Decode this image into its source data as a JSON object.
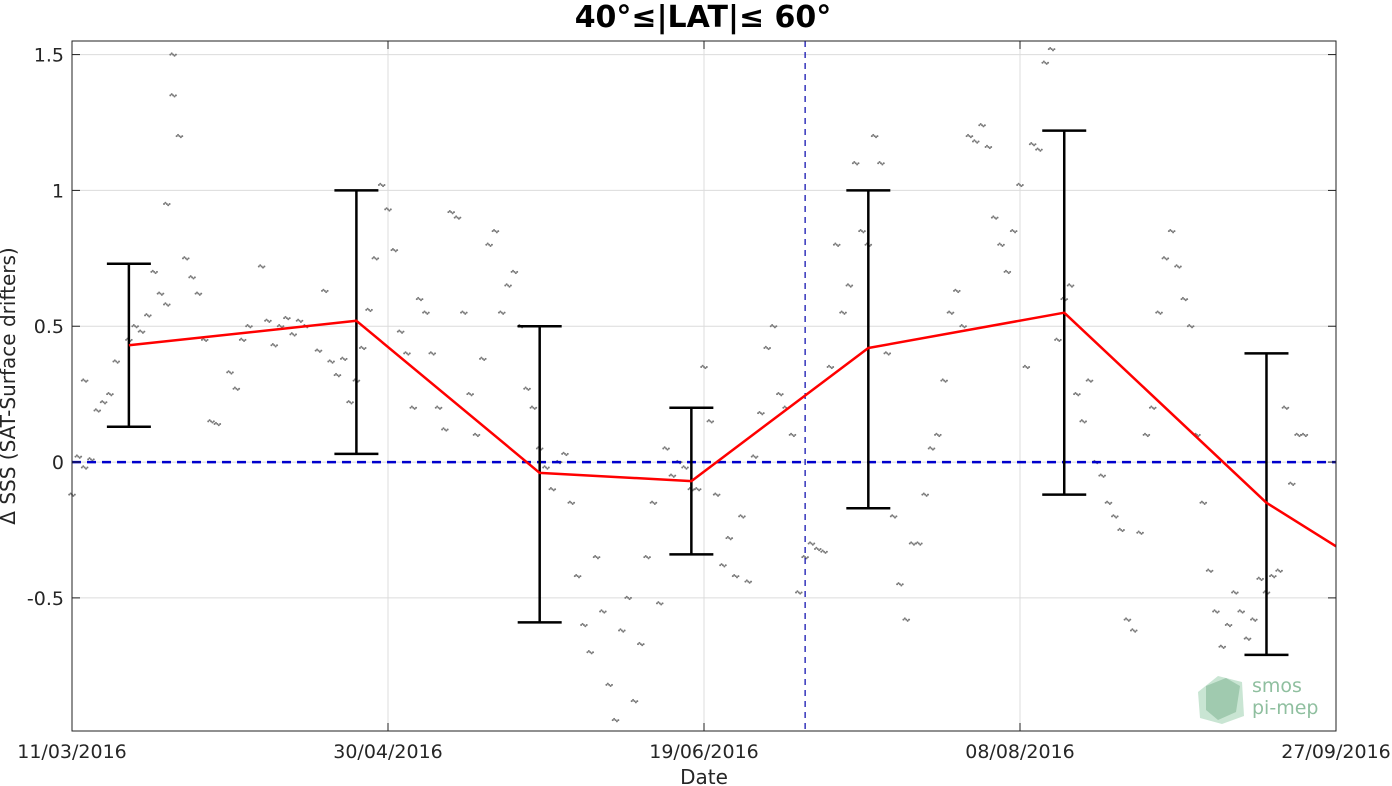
{
  "chart_data": {
    "type": "line",
    "title": "40°≤|LAT|≤ 60°",
    "xlabel": "Date",
    "ylabel": "Δ SSS (SAT-Surface drifters)",
    "x_ticks": [
      "11/03/2016",
      "30/04/2016",
      "19/06/2016",
      "08/08/2016",
      "27/09/2016"
    ],
    "y_ticks": [
      "1.5",
      "1",
      "0.5",
      "0",
      "-0.5"
    ],
    "xlim": [
      "2016-03-11",
      "2016-09-27"
    ],
    "ylim": [
      -0.99,
      1.55
    ],
    "grid": true,
    "zero_line": {
      "y": 0,
      "color": "#0000cc",
      "style": "dashed"
    },
    "vertical_marker": {
      "x": "2016-07-05",
      "color": "#0000aa",
      "style": "dashed"
    },
    "series": [
      {
        "type": "line",
        "color": "#ff0000",
        "x": [
          "2016-03-20",
          "2016-04-25",
          "2016-05-24",
          "2016-06-17",
          "2016-07-15",
          "2016-08-15",
          "2016-09-16",
          "2016-09-27"
        ],
        "y": [
          0.43,
          0.52,
          -0.04,
          -0.07,
          0.42,
          0.55,
          -0.15,
          -0.31
        ]
      },
      {
        "type": "errorbar",
        "color": "#000000",
        "x": [
          "2016-03-20",
          "2016-04-25",
          "2016-05-24",
          "2016-06-17",
          "2016-07-15",
          "2016-08-15",
          "2016-09-16"
        ],
        "lower": [
          0.13,
          0.03,
          -0.59,
          -0.34,
          -0.17,
          -0.12,
          -0.71
        ],
        "upper": [
          0.73,
          1.0,
          0.5,
          0.2,
          1.0,
          1.22,
          0.4
        ]
      },
      {
        "type": "scatter",
        "color": "#7a7a7a",
        "points": [
          [
            "2016-03-11",
            -0.12
          ],
          [
            "2016-03-12",
            0.02
          ],
          [
            "2016-03-13",
            -0.02
          ],
          [
            "2016-03-13",
            0.3
          ],
          [
            "2016-03-14",
            0.01
          ],
          [
            "2016-03-15",
            0.19
          ],
          [
            "2016-03-16",
            0.22
          ],
          [
            "2016-03-17",
            0.25
          ],
          [
            "2016-03-18",
            0.37
          ],
          [
            "2016-03-20",
            0.45
          ],
          [
            "2016-03-21",
            0.5
          ],
          [
            "2016-03-22",
            0.48
          ],
          [
            "2016-03-23",
            0.54
          ],
          [
            "2016-03-24",
            0.7
          ],
          [
            "2016-03-25",
            0.62
          ],
          [
            "2016-03-26",
            0.58
          ],
          [
            "2016-03-26",
            0.95
          ],
          [
            "2016-03-27",
            1.35
          ],
          [
            "2016-03-27",
            1.5
          ],
          [
            "2016-03-28",
            1.2
          ],
          [
            "2016-03-29",
            0.75
          ],
          [
            "2016-03-30",
            0.68
          ],
          [
            "2016-03-31",
            0.62
          ],
          [
            "2016-04-01",
            0.45
          ],
          [
            "2016-04-02",
            0.15
          ],
          [
            "2016-04-03",
            0.14
          ],
          [
            "2016-04-05",
            0.33
          ],
          [
            "2016-04-06",
            0.27
          ],
          [
            "2016-04-07",
            0.45
          ],
          [
            "2016-04-08",
            0.5
          ],
          [
            "2016-04-10",
            0.72
          ],
          [
            "2016-04-11",
            0.52
          ],
          [
            "2016-04-12",
            0.43
          ],
          [
            "2016-04-13",
            0.5
          ],
          [
            "2016-04-14",
            0.53
          ],
          [
            "2016-04-15",
            0.47
          ],
          [
            "2016-04-16",
            0.52
          ],
          [
            "2016-04-17",
            0.5
          ],
          [
            "2016-04-19",
            0.41
          ],
          [
            "2016-04-20",
            0.63
          ],
          [
            "2016-04-21",
            0.37
          ],
          [
            "2016-04-22",
            0.32
          ],
          [
            "2016-04-23",
            0.38
          ],
          [
            "2016-04-24",
            0.22
          ],
          [
            "2016-04-25",
            0.3
          ],
          [
            "2016-04-26",
            0.42
          ],
          [
            "2016-04-27",
            0.56
          ],
          [
            "2016-04-28",
            0.75
          ],
          [
            "2016-04-29",
            1.02
          ],
          [
            "2016-04-30",
            0.93
          ],
          [
            "2016-05-01",
            0.78
          ],
          [
            "2016-05-02",
            0.48
          ],
          [
            "2016-05-03",
            0.4
          ],
          [
            "2016-05-04",
            0.2
          ],
          [
            "2016-05-05",
            0.6
          ],
          [
            "2016-05-06",
            0.55
          ],
          [
            "2016-05-07",
            0.4
          ],
          [
            "2016-05-08",
            0.2
          ],
          [
            "2016-05-09",
            0.12
          ],
          [
            "2016-05-10",
            0.92
          ],
          [
            "2016-05-11",
            0.9
          ],
          [
            "2016-05-12",
            0.55
          ],
          [
            "2016-05-13",
            0.25
          ],
          [
            "2016-05-14",
            0.1
          ],
          [
            "2016-05-15",
            0.38
          ],
          [
            "2016-05-16",
            0.8
          ],
          [
            "2016-05-17",
            0.85
          ],
          [
            "2016-05-18",
            0.55
          ],
          [
            "2016-05-19",
            0.65
          ],
          [
            "2016-05-20",
            0.7
          ],
          [
            "2016-05-21",
            0.5
          ],
          [
            "2016-05-22",
            0.27
          ],
          [
            "2016-05-23",
            0.2
          ],
          [
            "2016-05-24",
            0.05
          ],
          [
            "2016-05-25",
            -0.02
          ],
          [
            "2016-05-26",
            -0.1
          ],
          [
            "2016-05-27",
            0.0
          ],
          [
            "2016-05-28",
            0.03
          ],
          [
            "2016-05-29",
            -0.15
          ],
          [
            "2016-05-30",
            -0.42
          ],
          [
            "2016-05-31",
            -0.6
          ],
          [
            "2016-06-01",
            -0.7
          ],
          [
            "2016-06-02",
            -0.35
          ],
          [
            "2016-06-03",
            -0.55
          ],
          [
            "2016-06-04",
            -0.82
          ],
          [
            "2016-06-05",
            -0.95
          ],
          [
            "2016-06-06",
            -0.62
          ],
          [
            "2016-06-07",
            -0.5
          ],
          [
            "2016-06-08",
            -0.88
          ],
          [
            "2016-06-09",
            -0.67
          ],
          [
            "2016-06-10",
            -0.35
          ],
          [
            "2016-06-11",
            -0.15
          ],
          [
            "2016-06-12",
            -0.52
          ],
          [
            "2016-06-13",
            0.05
          ],
          [
            "2016-06-14",
            -0.05
          ],
          [
            "2016-06-15",
            0.0
          ],
          [
            "2016-06-16",
            -0.02
          ],
          [
            "2016-06-17",
            -0.1
          ],
          [
            "2016-06-18",
            -0.1
          ],
          [
            "2016-06-19",
            0.35
          ],
          [
            "2016-06-20",
            0.15
          ],
          [
            "2016-06-21",
            -0.12
          ],
          [
            "2016-06-22",
            -0.38
          ],
          [
            "2016-06-23",
            -0.28
          ],
          [
            "2016-06-24",
            -0.42
          ],
          [
            "2016-06-25",
            -0.2
          ],
          [
            "2016-06-26",
            -0.44
          ],
          [
            "2016-06-27",
            0.02
          ],
          [
            "2016-06-28",
            0.18
          ],
          [
            "2016-06-29",
            0.42
          ],
          [
            "2016-06-30",
            0.5
          ],
          [
            "2016-07-01",
            0.25
          ],
          [
            "2016-07-02",
            0.2
          ],
          [
            "2016-07-03",
            0.1
          ],
          [
            "2016-07-04",
            -0.48
          ],
          [
            "2016-07-05",
            -0.35
          ],
          [
            "2016-07-06",
            -0.3
          ],
          [
            "2016-07-07",
            -0.32
          ],
          [
            "2016-07-08",
            -0.33
          ],
          [
            "2016-07-09",
            0.35
          ],
          [
            "2016-07-10",
            0.8
          ],
          [
            "2016-07-11",
            0.55
          ],
          [
            "2016-07-12",
            0.65
          ],
          [
            "2016-07-13",
            1.1
          ],
          [
            "2016-07-14",
            0.85
          ],
          [
            "2016-07-15",
            0.8
          ],
          [
            "2016-07-16",
            1.2
          ],
          [
            "2016-07-17",
            1.1
          ],
          [
            "2016-07-18",
            0.4
          ],
          [
            "2016-07-19",
            -0.2
          ],
          [
            "2016-07-20",
            -0.45
          ],
          [
            "2016-07-21",
            -0.58
          ],
          [
            "2016-07-22",
            -0.3
          ],
          [
            "2016-07-23",
            -0.3
          ],
          [
            "2016-07-24",
            -0.12
          ],
          [
            "2016-07-25",
            0.05
          ],
          [
            "2016-07-26",
            0.1
          ],
          [
            "2016-07-27",
            0.3
          ],
          [
            "2016-07-28",
            0.55
          ],
          [
            "2016-07-29",
            0.63
          ],
          [
            "2016-07-30",
            0.5
          ],
          [
            "2016-07-31",
            1.2
          ],
          [
            "2016-08-01",
            1.18
          ],
          [
            "2016-08-02",
            1.24
          ],
          [
            "2016-08-03",
            1.16
          ],
          [
            "2016-08-04",
            0.9
          ],
          [
            "2016-08-05",
            0.8
          ],
          [
            "2016-08-06",
            0.7
          ],
          [
            "2016-08-07",
            0.85
          ],
          [
            "2016-08-08",
            1.02
          ],
          [
            "2016-08-09",
            0.35
          ],
          [
            "2016-08-10",
            1.17
          ],
          [
            "2016-08-11",
            1.15
          ],
          [
            "2016-08-12",
            1.47
          ],
          [
            "2016-08-13",
            1.52
          ],
          [
            "2016-08-14",
            0.45
          ],
          [
            "2016-08-15",
            0.6
          ],
          [
            "2016-08-16",
            0.65
          ],
          [
            "2016-08-17",
            0.25
          ],
          [
            "2016-08-18",
            0.15
          ],
          [
            "2016-08-19",
            0.3
          ],
          [
            "2016-08-20",
            0.0
          ],
          [
            "2016-08-21",
            -0.05
          ],
          [
            "2016-08-22",
            -0.15
          ],
          [
            "2016-08-23",
            -0.2
          ],
          [
            "2016-08-24",
            -0.25
          ],
          [
            "2016-08-25",
            -0.58
          ],
          [
            "2016-08-26",
            -0.62
          ],
          [
            "2016-08-27",
            -0.26
          ],
          [
            "2016-08-28",
            0.1
          ],
          [
            "2016-08-29",
            0.2
          ],
          [
            "2016-08-30",
            0.55
          ],
          [
            "2016-08-31",
            0.75
          ],
          [
            "2016-09-01",
            0.85
          ],
          [
            "2016-09-02",
            0.72
          ],
          [
            "2016-09-03",
            0.6
          ],
          [
            "2016-09-04",
            0.5
          ],
          [
            "2016-09-05",
            0.1
          ],
          [
            "2016-09-06",
            -0.15
          ],
          [
            "2016-09-07",
            -0.4
          ],
          [
            "2016-09-08",
            -0.55
          ],
          [
            "2016-09-09",
            -0.68
          ],
          [
            "2016-09-10",
            -0.6
          ],
          [
            "2016-09-11",
            -0.48
          ],
          [
            "2016-09-12",
            -0.55
          ],
          [
            "2016-09-13",
            -0.65
          ],
          [
            "2016-09-14",
            -0.58
          ],
          [
            "2016-09-15",
            -0.43
          ],
          [
            "2016-09-16",
            -0.48
          ],
          [
            "2016-09-17",
            -0.42
          ],
          [
            "2016-09-18",
            -0.4
          ],
          [
            "2016-09-19",
            0.2
          ],
          [
            "2016-09-20",
            -0.08
          ],
          [
            "2016-09-21",
            0.1
          ],
          [
            "2016-09-22",
            0.1
          ]
        ]
      }
    ]
  },
  "logo": {
    "line1": "smos",
    "line2": "pi-mep",
    "color": "#8fbf9f"
  }
}
